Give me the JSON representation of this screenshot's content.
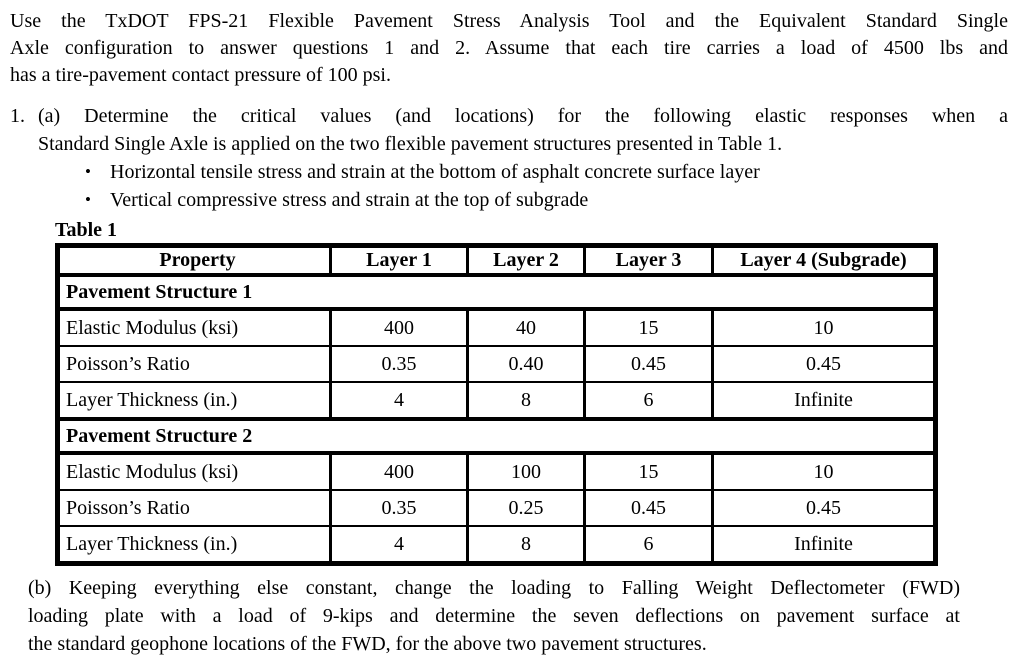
{
  "colors": {
    "background": "#ffffff",
    "text": "#000000",
    "table_border": "#000000"
  },
  "intro": {
    "lines": [
      "Use the TxDOT FPS-21 Flexible Pavement Stress Analysis Tool and the Equivalent Standard Single",
      "Axle configuration to answer questions 1 and 2. Assume that each tire carries a load of 4500 lbs and",
      "has a tire-pavement contact pressure of 100 psi."
    ]
  },
  "question1": {
    "number": "1.",
    "part_a": {
      "lines": [
        "(a) Determine the critical values (and locations) for the following elastic responses when a",
        "Standard Single Axle is applied on the two flexible pavement structures presented in Table 1."
      ]
    },
    "bullet_glyph": "•",
    "bullets": [
      "Horizontal tensile stress and strain at the bottom of asphalt concrete surface layer",
      "Vertical compressive stress and strain at the top of subgrade"
    ]
  },
  "table1": {
    "caption": "Table 1",
    "columns": [
      "Property",
      "Layer 1",
      "Layer 2",
      "Layer 3",
      "Layer 4 (Subgrade)"
    ],
    "sections": [
      {
        "title": "Pavement Structure 1",
        "rows": [
          {
            "property": "Elastic Modulus (ksi)",
            "values": [
              "400",
              "40",
              "15",
              "10"
            ]
          },
          {
            "property": "Poisson’s Ratio",
            "values": [
              "0.35",
              "0.40",
              "0.45",
              "0.45"
            ]
          },
          {
            "property": "Layer Thickness (in.)",
            "values": [
              "4",
              "8",
              "6",
              "Infinite"
            ]
          }
        ]
      },
      {
        "title": "Pavement Structure 2",
        "rows": [
          {
            "property": "Elastic Modulus (ksi)",
            "values": [
              "400",
              "100",
              "15",
              "10"
            ]
          },
          {
            "property": "Poisson’s Ratio",
            "values": [
              "0.35",
              "0.25",
              "0.45",
              "0.45"
            ]
          },
          {
            "property": "Layer Thickness (in.)",
            "values": [
              "4",
              "8",
              "6",
              "Infinite"
            ]
          }
        ]
      }
    ]
  },
  "part_b": {
    "lines": [
      "(b) Keeping everything else constant, change the loading to Falling Weight Deflectometer (FWD)",
      "loading plate with a load of 9-kips and determine the seven deflections on pavement surface at",
      "the standard geophone locations of the FWD, for the above two pavement structures."
    ]
  }
}
